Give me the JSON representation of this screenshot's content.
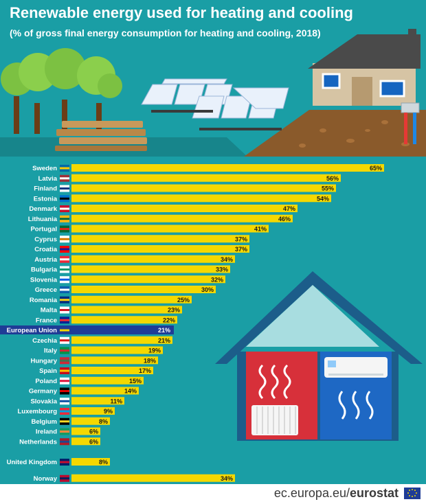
{
  "header": {
    "title": "Renewable energy used for heating and cooling",
    "subtitle": "(% of gross final energy consumption for heating and cooling, 2018)"
  },
  "footer": {
    "source_plain": "ec.europa.eu/",
    "source_bold": "eurostat"
  },
  "colors": {
    "background": "#1a9ea5",
    "bar": "#f5d800",
    "bar_highlight": "#1f3c96",
    "label_text": "#ffffff",
    "value_text": "#1a1a1a",
    "ground": "#8a5a2b"
  },
  "chart_data": {
    "type": "bar",
    "orientation": "horizontal",
    "unit": "%",
    "highlight": "European Union",
    "categories": [
      "Sweden",
      "Latvia",
      "Finland",
      "Estonia",
      "Denmark",
      "Lithuania",
      "Portugal",
      "Cyprus",
      "Croatia",
      "Austria",
      "Bulgaria",
      "Slovenia",
      "Greece",
      "Romania",
      "Malta",
      "France",
      "European Union",
      "Czechia",
      "Italy",
      "Hungary",
      "Spain",
      "Poland",
      "Germany",
      "Slovakia",
      "Luxembourg",
      "Belgium",
      "Ireland",
      "Netherlands",
      "United Kingdom",
      "Norway"
    ],
    "values": [
      65,
      56,
      55,
      54,
      47,
      46,
      41,
      37,
      37,
      34,
      33,
      32,
      30,
      25,
      23,
      22,
      21,
      21,
      19,
      18,
      17,
      15,
      14,
      11,
      9,
      8,
      6,
      6,
      8,
      34
    ],
    "value_labels": [
      "65%",
      "56%",
      "55%",
      "54%",
      "47%",
      "46%",
      "41%",
      "37%",
      "37%",
      "34%",
      "33%",
      "32%",
      "30%",
      "25%",
      "23%",
      "22%",
      "21%",
      "21%",
      "19%",
      "18%",
      "17%",
      "15%",
      "14%",
      "11%",
      "9%",
      "8%",
      "6%",
      "6%",
      "8%",
      "34%"
    ],
    "xlim": [
      0,
      65
    ],
    "grid": false,
    "legend": "none"
  }
}
